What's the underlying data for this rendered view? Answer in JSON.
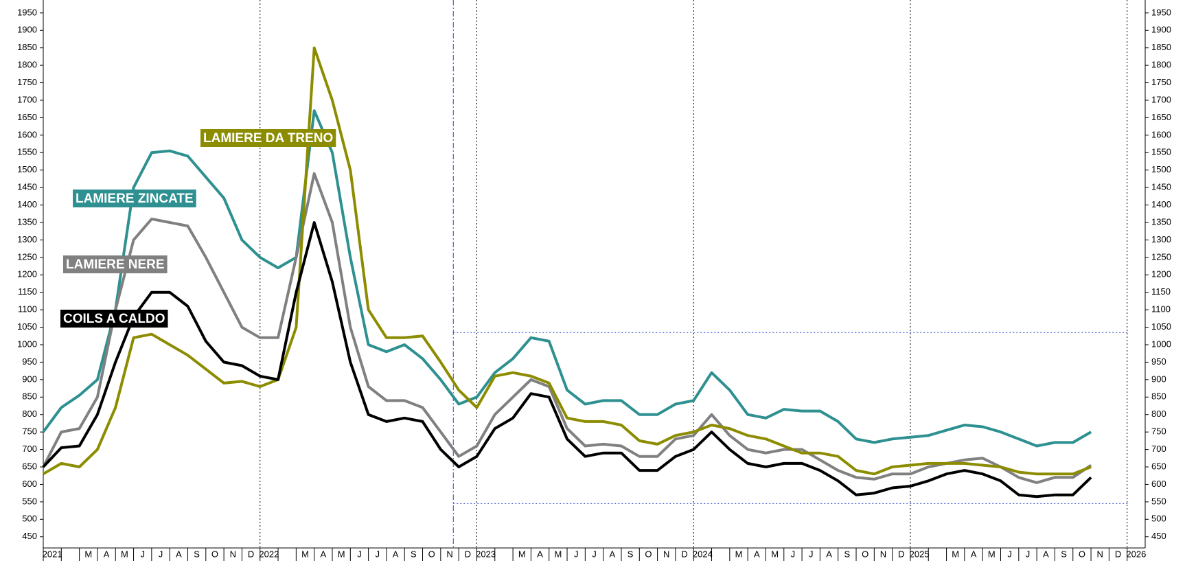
{
  "chart_data": {
    "type": "line",
    "categories": [
      "2021",
      null,
      "M",
      "A",
      "M",
      "J",
      "J",
      "A",
      "S",
      "O",
      "N",
      "D",
      "2022",
      null,
      "M",
      "A",
      "M",
      "J",
      "J",
      "A",
      "S",
      "O",
      "N",
      "D",
      "2023",
      null,
      "M",
      "A",
      "M",
      "J",
      "J",
      "A",
      "S",
      "O",
      "N",
      "D",
      "2024",
      null,
      "M",
      "A",
      "M",
      "J",
      "J",
      "A",
      "S",
      "O",
      "N",
      "D",
      "2025",
      null,
      "M",
      "A",
      "M",
      "J",
      "J",
      "A",
      "S",
      "O",
      "N",
      "D",
      "2026"
    ],
    "series": [
      {
        "name": "LAMIERE ZINCATE",
        "color": "#2e9090",
        "values": [
          750,
          820,
          855,
          900,
          1100,
          1450,
          1550,
          1555,
          1540,
          1480,
          1420,
          1300,
          1250,
          1220,
          1250,
          1670,
          1550,
          1250,
          1000,
          980,
          1000,
          960,
          900,
          830,
          850,
          920,
          960,
          1020,
          1010,
          870,
          830,
          840,
          840,
          800,
          800,
          830,
          840,
          920,
          870,
          800,
          790,
          815,
          810,
          810,
          780,
          730,
          720,
          730,
          735,
          740,
          755,
          770,
          765,
          750,
          730,
          710,
          720,
          720,
          750,
          null,
          null
        ]
      },
      {
        "name": "LAMIERE NERE",
        "color": "#808080",
        "values": [
          650,
          750,
          760,
          850,
          1100,
          1300,
          1360,
          1350,
          1340,
          1250,
          1150,
          1050,
          1020,
          1020,
          1250,
          1490,
          1350,
          1050,
          880,
          840,
          840,
          820,
          750,
          680,
          710,
          800,
          850,
          900,
          880,
          760,
          710,
          715,
          710,
          680,
          680,
          730,
          740,
          800,
          740,
          700,
          690,
          700,
          700,
          670,
          640,
          620,
          615,
          630,
          630,
          650,
          660,
          670,
          675,
          650,
          620,
          605,
          620,
          620,
          655,
          null,
          null
        ]
      },
      {
        "name": "LAMIERE DA TRENO",
        "color": "#8c8c00",
        "values": [
          630,
          660,
          650,
          700,
          820,
          1020,
          1030,
          1000,
          970,
          930,
          890,
          895,
          880,
          900,
          1050,
          1850,
          1700,
          1500,
          1100,
          1020,
          1020,
          1025,
          950,
          870,
          820,
          910,
          920,
          910,
          890,
          790,
          780,
          780,
          770,
          725,
          715,
          740,
          750,
          770,
          760,
          740,
          730,
          710,
          690,
          690,
          680,
          640,
          630,
          650,
          655,
          660,
          660,
          660,
          655,
          650,
          635,
          630,
          630,
          630,
          650,
          null,
          null
        ]
      },
      {
        "name": "COILS A CALDO",
        "color": "#000000",
        "values": [
          650,
          705,
          710,
          800,
          950,
          1080,
          1150,
          1150,
          1110,
          1010,
          950,
          940,
          910,
          900,
          1150,
          1350,
          1180,
          950,
          800,
          780,
          790,
          780,
          700,
          650,
          680,
          760,
          790,
          860,
          850,
          730,
          680,
          690,
          690,
          640,
          640,
          680,
          700,
          750,
          700,
          660,
          650,
          660,
          660,
          640,
          610,
          570,
          575,
          590,
          595,
          610,
          630,
          640,
          630,
          610,
          570,
          565,
          570,
          570,
          620,
          null,
          null
        ]
      }
    ],
    "ylim": [
      418,
      1987
    ],
    "yticks": [
      450,
      500,
      550,
      600,
      650,
      700,
      750,
      800,
      850,
      900,
      950,
      1000,
      1050,
      1100,
      1150,
      1200,
      1250,
      1300,
      1350,
      1400,
      1450,
      1500,
      1550,
      1600,
      1650,
      1700,
      1750,
      1800,
      1850,
      1900,
      1950
    ],
    "hlines": [
      1035,
      545
    ],
    "grid": true
  }
}
